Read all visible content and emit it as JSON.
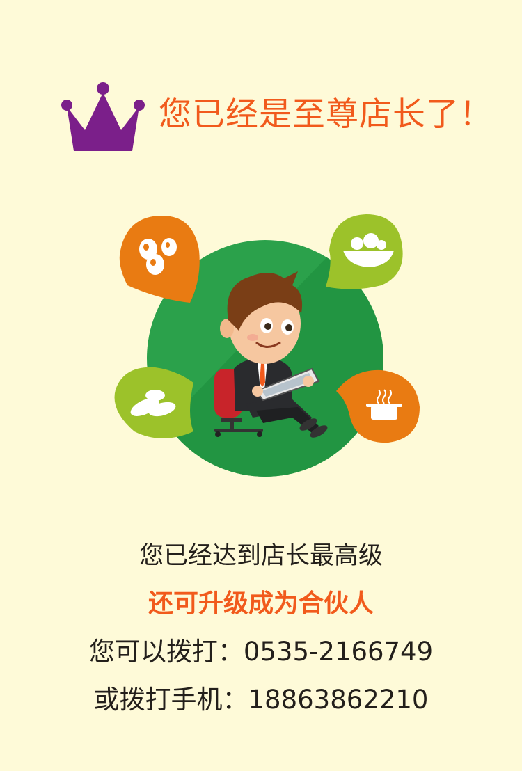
{
  "header": {
    "crown_icon": "crown-icon",
    "title": "您已经是至尊店长了！"
  },
  "illustration": {
    "bubbles": [
      {
        "icon": "eggs-icon",
        "color": "#e97b12"
      },
      {
        "icon": "fruit-bowl-icon",
        "color": "#9cc22a"
      },
      {
        "icon": "vegetables-icon",
        "color": "#9cc22a"
      },
      {
        "icon": "cooking-pot-icon",
        "color": "#e97b12"
      }
    ],
    "circle_color": "#2ba14b",
    "character": "businessman-tablet-icon"
  },
  "content": {
    "line1": "您已经达到店长最高级",
    "line2": "还可升级成为合伙人",
    "line3": "您可以拨打：0535-2166749",
    "line4": "或拨打手机：18863862210"
  },
  "colors": {
    "background": "#fefad8",
    "accent": "#f15a1c",
    "crown": "#7b1f8a",
    "text": "#231f1b"
  }
}
